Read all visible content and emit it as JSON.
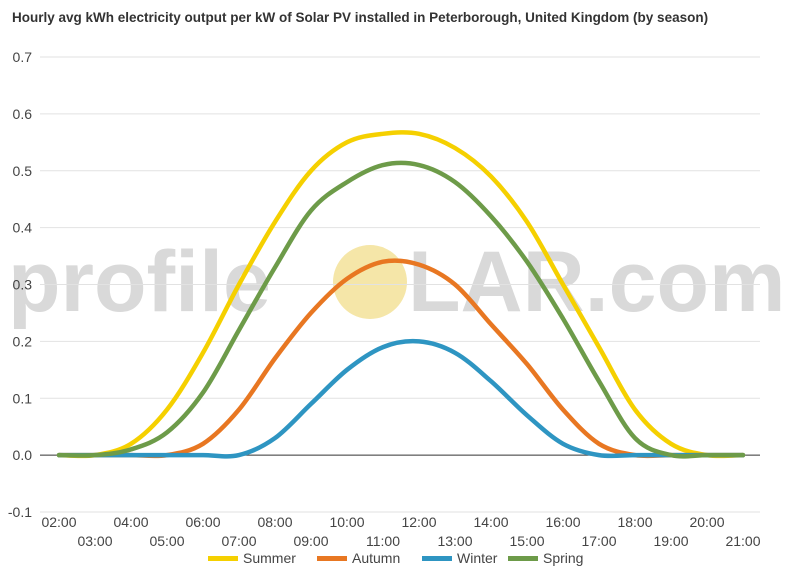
{
  "chart_data": {
    "type": "line",
    "title": "Hourly avg kWh electricity output per kW of Solar PV installed in Peterborough, United Kingdom (by season)",
    "watermark": {
      "left": "profile",
      "right": "LAR.com"
    },
    "colors": {
      "sun": "#f5e6a8"
    },
    "x": [
      "02:00",
      "03:00",
      "04:00",
      "05:00",
      "06:00",
      "07:00",
      "08:00",
      "09:00",
      "10:00",
      "11:00",
      "12:00",
      "13:00",
      "14:00",
      "15:00",
      "16:00",
      "17:00",
      "18:00",
      "19:00",
      "20:00",
      "21:00"
    ],
    "ylim": [
      -0.1,
      0.7
    ],
    "yticks": [
      "0.7",
      "0.6",
      "0.5",
      "0.4",
      "0.3",
      "0.2",
      "0.1",
      "0.0",
      "-0.1"
    ],
    "grid": true,
    "legend_position": "bottom",
    "series": [
      {
        "name": "Summer",
        "color": "#f5d000",
        "values": [
          0,
          0,
          0.02,
          0.08,
          0.18,
          0.3,
          0.41,
          0.5,
          0.55,
          0.565,
          0.565,
          0.54,
          0.49,
          0.41,
          0.3,
          0.19,
          0.08,
          0.02,
          0,
          0
        ]
      },
      {
        "name": "Autumn",
        "color": "#e87722",
        "values": [
          0,
          0,
          0,
          0,
          0.02,
          0.08,
          0.17,
          0.25,
          0.31,
          0.34,
          0.335,
          0.3,
          0.23,
          0.16,
          0.08,
          0.02,
          0,
          0,
          0,
          0
        ]
      },
      {
        "name": "Winter",
        "color": "#2e95c2",
        "values": [
          0,
          0,
          0,
          0,
          0,
          0,
          0.03,
          0.09,
          0.15,
          0.19,
          0.2,
          0.18,
          0.13,
          0.07,
          0.02,
          0,
          0,
          0,
          0,
          0
        ]
      },
      {
        "name": "Spring",
        "color": "#6d9b49",
        "values": [
          0,
          0,
          0.01,
          0.04,
          0.11,
          0.22,
          0.33,
          0.43,
          0.48,
          0.51,
          0.51,
          0.48,
          0.42,
          0.34,
          0.24,
          0.13,
          0.03,
          0,
          0,
          0
        ]
      }
    ]
  }
}
